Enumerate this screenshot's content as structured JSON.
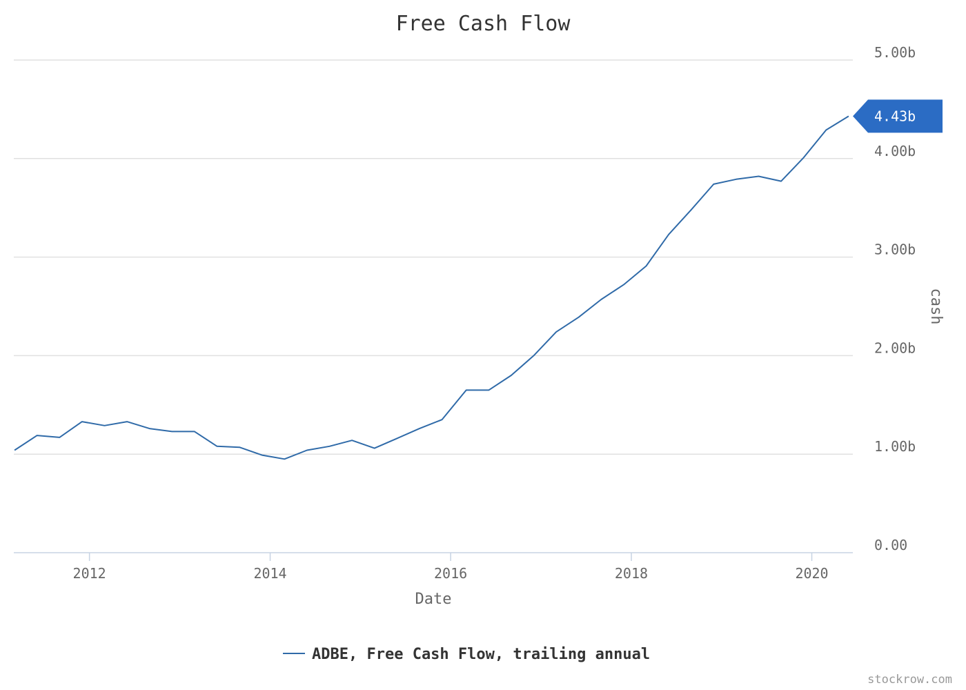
{
  "chart_data": {
    "type": "line",
    "title": "Free Cash Flow",
    "xlabel": "Date",
    "ylabel": "cash",
    "x_ticks": [
      "2012",
      "2014",
      "2016",
      "2018",
      "2020"
    ],
    "y_ticks": [
      "0.00",
      "1.00b",
      "2.00b",
      "3.00b",
      "4.00b",
      "5.00b"
    ],
    "ylim": [
      0,
      5000000000
    ],
    "xlim": [
      "2011-03-01",
      "2020-06-15"
    ],
    "grid": true,
    "legend_position": "bottom-center",
    "last_value_label": "4.43b",
    "series": [
      {
        "name": "ADBE, Free Cash Flow, trailing annual",
        "color": "#2f6aa8",
        "x": [
          "2011-03-04",
          "2011-06-03",
          "2011-09-02",
          "2011-12-02",
          "2012-03-02",
          "2012-06-01",
          "2012-08-31",
          "2012-11-30",
          "2013-03-01",
          "2013-05-31",
          "2013-08-30",
          "2013-11-29",
          "2014-02-28",
          "2014-05-30",
          "2014-08-29",
          "2014-11-28",
          "2015-02-27",
          "2015-05-29",
          "2015-08-28",
          "2015-11-27",
          "2016-03-04",
          "2016-06-03",
          "2016-09-02",
          "2016-12-02",
          "2017-03-03",
          "2017-06-02",
          "2017-09-01",
          "2017-12-01",
          "2018-03-02",
          "2018-06-01",
          "2018-08-31",
          "2018-11-30",
          "2019-03-01",
          "2019-05-31",
          "2019-08-30",
          "2019-11-29",
          "2020-02-28",
          "2020-05-29"
        ],
        "values": [
          1040000000,
          1190000000,
          1170000000,
          1330000000,
          1290000000,
          1330000000,
          1260000000,
          1230000000,
          1230000000,
          1080000000,
          1070000000,
          990000000,
          950000000,
          1040000000,
          1080000000,
          1140000000,
          1060000000,
          1160000000,
          1260000000,
          1350000000,
          1650000000,
          1650000000,
          1800000000,
          2000000000,
          2240000000,
          2390000000,
          2570000000,
          2720000000,
          2910000000,
          3230000000,
          3480000000,
          3740000000,
          3790000000,
          3820000000,
          3770000000,
          4010000000,
          4290000000,
          4430000000
        ]
      }
    ]
  },
  "credit": "stockrow.com"
}
